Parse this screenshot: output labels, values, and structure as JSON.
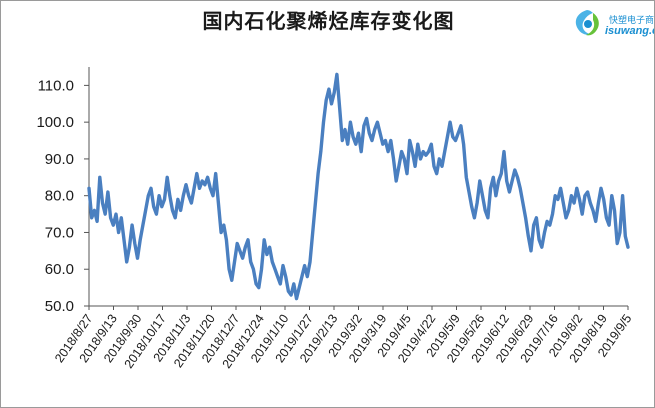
{
  "title": "国内石化聚烯烃库存变化图",
  "logo": {
    "name_cn": "快塑电子商",
    "name_en": "isuwang.c",
    "color": "#1a8fd1"
  },
  "chart_data": {
    "type": "line",
    "title": "国内石化聚烯烃库存变化图",
    "xlabel": "",
    "ylabel": "",
    "ylim": [
      50,
      115
    ],
    "yticks": [
      "50.0",
      "60.0",
      "70.0",
      "80.0",
      "90.0",
      "100.0",
      "110.0"
    ],
    "grid": false,
    "legend": "none",
    "line_color": "#4a7fc0",
    "x_tick_labels": [
      "2018/8/27",
      "2018/9/13",
      "2018/9/30",
      "2018/10/17",
      "2018/11/3",
      "2018/11/20",
      "2018/12/7",
      "2018/12/24",
      "2019/1/10",
      "2019/1/27",
      "2019/2/13",
      "2019/3/2",
      "2019/3/19",
      "2019/4/5",
      "2019/4/22",
      "2019/5/9",
      "2019/5/26",
      "2019/6/12",
      "2019/6/29",
      "2019/7/16",
      "2019/8/2",
      "2019/8/19",
      "2019/9/5"
    ],
    "series": [
      {
        "values": [
          82,
          74,
          76,
          73,
          85,
          78,
          75,
          81,
          74,
          72,
          75,
          70,
          74,
          68,
          62,
          66,
          72,
          67,
          63,
          68,
          72,
          76,
          80,
          82,
          77,
          75,
          80,
          77,
          79,
          85,
          80,
          76,
          74,
          79,
          76,
          80,
          83,
          80,
          78,
          82,
          86,
          82,
          84,
          83,
          85,
          82,
          80,
          86,
          78,
          70,
          72,
          68,
          60,
          57,
          62,
          67,
          65,
          63,
          66,
          68,
          62,
          60,
          56,
          55,
          60,
          68,
          64,
          66,
          62,
          60,
          58,
          56,
          61,
          58,
          54,
          53,
          56,
          52,
          55,
          58,
          61,
          58,
          62,
          70,
          78,
          86,
          92,
          100,
          106,
          109,
          105,
          108,
          113,
          104,
          95,
          98,
          94,
          100,
          96,
          94,
          97,
          92,
          99,
          101,
          97,
          95,
          98,
          100,
          97,
          94,
          95,
          92,
          95,
          90,
          84,
          88,
          92,
          90,
          86,
          95,
          92,
          88,
          94,
          90,
          92,
          91,
          92,
          94,
          88,
          86,
          90,
          88,
          92,
          96,
          100,
          96,
          95,
          97,
          99,
          94,
          85,
          81,
          77,
          74,
          78,
          84,
          80,
          76,
          74,
          82,
          85,
          80,
          84,
          86,
          92,
          84,
          81,
          84,
          87,
          85,
          82,
          78,
          74,
          69,
          65,
          72,
          74,
          68,
          66,
          70,
          73,
          72,
          75,
          80,
          79,
          82,
          78,
          74,
          76,
          80,
          78,
          82,
          79,
          75,
          80,
          81,
          78,
          76,
          73,
          78,
          82,
          79,
          74,
          72,
          80,
          76,
          67,
          70,
          80,
          69,
          66
        ]
      }
    ]
  }
}
